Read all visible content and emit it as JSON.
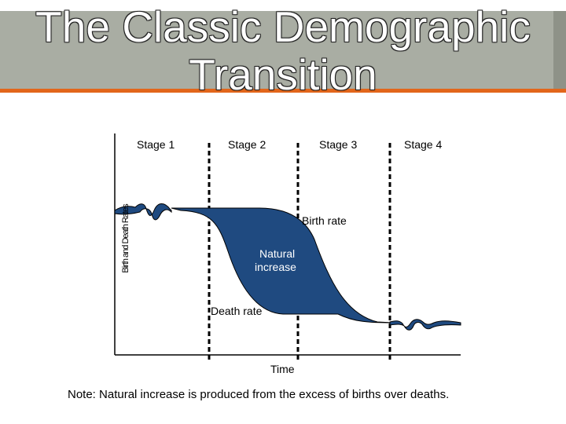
{
  "title": "The Classic Demographic Transition",
  "stages": [
    "Stage 1",
    "Stage 2",
    "Stage 3",
    "Stage 4"
  ],
  "y_axis_label": "Birth and Death Rates",
  "x_axis_label": "Time",
  "birth_rate_label": "Birth rate",
  "death_rate_label": "Death rate",
  "natural_increase_label_1": "Natural",
  "natural_increase_label_2": "increase",
  "note": "Note: Natural increase is produced from the excess of births over deaths.",
  "colors": {
    "fill": "#1f4a80",
    "title_band": "#a9ada3",
    "accent": "#e2661b"
  }
}
